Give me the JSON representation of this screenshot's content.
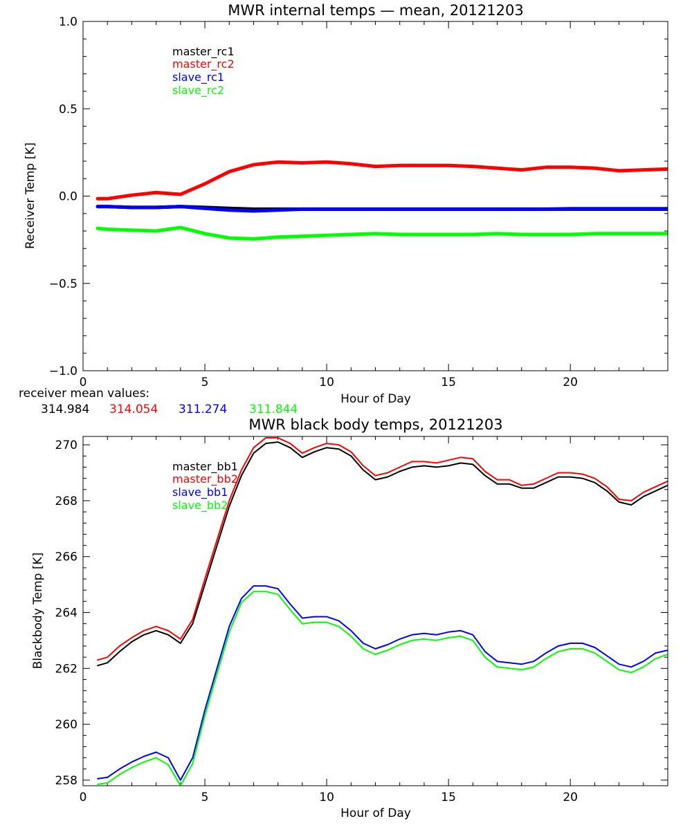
{
  "chart_data": [
    {
      "type": "line",
      "title": "MWR internal temps — mean, 20121203",
      "xlabel": "Hour of Day",
      "ylabel": "Receiver Temp [K]",
      "xlim": [
        0,
        24
      ],
      "ylim": [
        -1.0,
        1.0
      ],
      "xticks": [
        0,
        5,
        10,
        15,
        20
      ],
      "xtick_labels": [
        "0",
        "5",
        "10",
        "15",
        "20"
      ],
      "yticks": [
        -1.0,
        -0.5,
        0.0,
        0.5,
        1.0
      ],
      "ytick_labels": [
        "−1.0",
        "−0.5",
        "0.0",
        "0.5",
        "1.0"
      ],
      "grid": false,
      "legend_position": "top-left",
      "series": [
        {
          "name": "master_rc1",
          "color": "#000000",
          "x": [
            0.6,
            1,
            2,
            3,
            4,
            5,
            6,
            7,
            8,
            9,
            10,
            11,
            12,
            13,
            14,
            15,
            16,
            17,
            18,
            19,
            20,
            21,
            22,
            23,
            24
          ],
          "y": [
            -0.06,
            -0.06,
            -0.065,
            -0.065,
            -0.06,
            -0.065,
            -0.07,
            -0.075,
            -0.075,
            -0.075,
            -0.075,
            -0.075,
            -0.075,
            -0.075,
            -0.075,
            -0.075,
            -0.075,
            -0.075,
            -0.075,
            -0.075,
            -0.075,
            -0.075,
            -0.075,
            -0.075,
            -0.075
          ]
        },
        {
          "name": "master_rc2",
          "color": "#ff0000",
          "x": [
            0.6,
            1,
            2,
            3,
            4,
            5,
            6,
            7,
            8,
            9,
            10,
            11,
            12,
            13,
            14,
            15,
            16,
            17,
            18,
            19,
            20,
            21,
            22,
            23,
            24
          ],
          "y": [
            -0.015,
            -0.015,
            0.005,
            0.02,
            0.01,
            0.07,
            0.14,
            0.18,
            0.195,
            0.19,
            0.195,
            0.185,
            0.17,
            0.175,
            0.175,
            0.175,
            0.17,
            0.16,
            0.15,
            0.165,
            0.165,
            0.16,
            0.145,
            0.15,
            0.155
          ]
        },
        {
          "name": "slave_rc1",
          "color": "#0000ff",
          "x": [
            0.6,
            1,
            2,
            3,
            4,
            5,
            6,
            7,
            8,
            9,
            10,
            11,
            12,
            13,
            14,
            15,
            16,
            17,
            18,
            19,
            20,
            21,
            22,
            23,
            24
          ],
          "y": [
            -0.06,
            -0.06,
            -0.065,
            -0.065,
            -0.06,
            -0.07,
            -0.08,
            -0.085,
            -0.08,
            -0.075,
            -0.075,
            -0.075,
            -0.075,
            -0.075,
            -0.075,
            -0.075,
            -0.075,
            -0.075,
            -0.075,
            -0.075,
            -0.072,
            -0.072,
            -0.072,
            -0.072,
            -0.072
          ]
        },
        {
          "name": "slave_rc2",
          "color": "#00ff00",
          "x": [
            0.6,
            1,
            2,
            3,
            4,
            5,
            6,
            7,
            8,
            9,
            10,
            11,
            12,
            13,
            14,
            15,
            16,
            17,
            18,
            19,
            20,
            21,
            22,
            23,
            24
          ],
          "y": [
            -0.185,
            -0.19,
            -0.195,
            -0.2,
            -0.18,
            -0.215,
            -0.24,
            -0.245,
            -0.235,
            -0.23,
            -0.225,
            -0.22,
            -0.215,
            -0.22,
            -0.22,
            -0.22,
            -0.22,
            -0.215,
            -0.22,
            -0.22,
            -0.22,
            -0.215,
            -0.215,
            -0.215,
            -0.215
          ]
        }
      ]
    },
    {
      "type": "line",
      "title": "MWR black body temps, 20121203",
      "xlabel": "Hour of Day",
      "ylabel": "Blackbody Temp [K]",
      "xlim": [
        0,
        24
      ],
      "ylim": [
        257.8,
        270.3
      ],
      "xticks": [
        0,
        5,
        10,
        15,
        20
      ],
      "xtick_labels": [
        "0",
        "5",
        "10",
        "15",
        "20"
      ],
      "yticks": [
        258,
        260,
        262,
        264,
        266,
        268,
        270
      ],
      "ytick_labels": [
        "258",
        "260",
        "262",
        "264",
        "266",
        "268",
        "270"
      ],
      "grid": false,
      "legend_position": "top-left",
      "series": [
        {
          "name": "master_bb1",
          "color": "#000000",
          "x": [
            0.6,
            1.0,
            1.5,
            2.0,
            2.5,
            3.0,
            3.5,
            4.0,
            4.5,
            5.0,
            5.5,
            6.0,
            6.5,
            7.0,
            7.5,
            8.0,
            8.5,
            9.0,
            9.5,
            10.0,
            10.5,
            11.0,
            11.5,
            12.0,
            12.5,
            13.0,
            13.5,
            14.0,
            14.5,
            15.0,
            15.5,
            16.0,
            16.5,
            17.0,
            17.5,
            18.0,
            18.5,
            19.0,
            19.5,
            20.0,
            20.5,
            21.0,
            21.5,
            22.0,
            22.5,
            23.0,
            23.5,
            24.0
          ],
          "y": [
            262.1,
            262.2,
            262.6,
            262.95,
            263.2,
            263.35,
            263.2,
            262.9,
            263.6,
            265.0,
            266.4,
            267.8,
            268.9,
            269.7,
            270.05,
            270.1,
            269.9,
            269.55,
            269.75,
            269.9,
            269.85,
            269.6,
            269.1,
            268.75,
            268.85,
            269.05,
            269.2,
            269.25,
            269.2,
            269.25,
            269.35,
            269.3,
            268.9,
            268.6,
            268.6,
            268.45,
            268.45,
            268.65,
            268.85,
            268.85,
            268.8,
            268.65,
            268.35,
            267.95,
            267.85,
            268.15,
            268.35,
            268.55
          ]
        },
        {
          "name": "master_bb2",
          "color": "#ff0000",
          "x": [
            0.6,
            1.0,
            1.5,
            2.0,
            2.5,
            3.0,
            3.5,
            4.0,
            4.5,
            5.0,
            5.5,
            6.0,
            6.5,
            7.0,
            7.5,
            8.0,
            8.5,
            9.0,
            9.5,
            10.0,
            10.5,
            11.0,
            11.5,
            12.0,
            12.5,
            13.0,
            13.5,
            14.0,
            14.5,
            15.0,
            15.5,
            16.0,
            16.5,
            17.0,
            17.5,
            18.0,
            18.5,
            19.0,
            19.5,
            20.0,
            20.5,
            21.0,
            21.5,
            22.0,
            22.5,
            23.0,
            23.5,
            24.0
          ],
          "y": [
            262.3,
            262.4,
            262.8,
            263.1,
            263.35,
            263.5,
            263.35,
            263.05,
            263.75,
            265.2,
            266.6,
            268.0,
            269.1,
            269.9,
            270.25,
            270.25,
            270.05,
            269.7,
            269.9,
            270.05,
            270.0,
            269.75,
            269.25,
            268.9,
            269.0,
            269.2,
            269.4,
            269.4,
            269.35,
            269.45,
            269.55,
            269.5,
            269.05,
            268.75,
            268.75,
            268.55,
            268.6,
            268.8,
            269.0,
            269.0,
            268.95,
            268.8,
            268.5,
            268.05,
            268.0,
            268.3,
            268.5,
            268.7
          ]
        },
        {
          "name": "slave_bb1",
          "color": "#0000ff",
          "x": [
            0.6,
            1.0,
            1.5,
            2.0,
            2.5,
            3.0,
            3.5,
            4.0,
            4.5,
            5.0,
            5.5,
            6.0,
            6.5,
            7.0,
            7.5,
            8.0,
            8.5,
            9.0,
            9.5,
            10.0,
            10.5,
            11.0,
            11.5,
            12.0,
            12.5,
            13.0,
            13.5,
            14.0,
            14.5,
            15.0,
            15.5,
            16.0,
            16.5,
            17.0,
            17.5,
            18.0,
            18.5,
            19.0,
            19.5,
            20.0,
            20.5,
            21.0,
            21.5,
            22.0,
            22.5,
            23.0,
            23.5,
            24.0
          ],
          "y": [
            258.05,
            258.1,
            258.4,
            258.65,
            258.85,
            259.0,
            258.8,
            258.0,
            258.8,
            260.5,
            262.0,
            263.5,
            264.5,
            264.95,
            264.95,
            264.85,
            264.3,
            263.8,
            263.85,
            263.85,
            263.7,
            263.35,
            262.9,
            262.7,
            262.85,
            263.05,
            263.2,
            263.25,
            263.2,
            263.3,
            263.35,
            263.2,
            262.6,
            262.25,
            262.2,
            262.15,
            262.25,
            262.55,
            262.8,
            262.9,
            262.9,
            262.75,
            262.45,
            262.15,
            262.05,
            262.25,
            262.55,
            262.65
          ]
        },
        {
          "name": "slave_bb2",
          "color": "#00ff00",
          "x": [
            0.6,
            1.0,
            1.5,
            2.0,
            2.5,
            3.0,
            3.5,
            4.0,
            4.5,
            5.0,
            5.5,
            6.0,
            6.5,
            7.0,
            7.5,
            8.0,
            8.5,
            9.0,
            9.5,
            10.0,
            10.5,
            11.0,
            11.5,
            12.0,
            12.5,
            13.0,
            13.5,
            14.0,
            14.5,
            15.0,
            15.5,
            16.0,
            16.5,
            17.0,
            17.5,
            18.0,
            18.5,
            19.0,
            19.5,
            20.0,
            20.5,
            21.0,
            21.5,
            22.0,
            22.5,
            23.0,
            23.5,
            24.0
          ],
          "y": [
            257.85,
            257.9,
            258.2,
            258.45,
            258.65,
            258.8,
            258.55,
            257.8,
            258.6,
            260.3,
            261.8,
            263.3,
            264.35,
            264.75,
            264.75,
            264.65,
            264.1,
            263.6,
            263.65,
            263.65,
            263.5,
            263.15,
            262.7,
            262.5,
            262.65,
            262.85,
            263.0,
            263.05,
            263.0,
            263.1,
            263.15,
            263.0,
            262.4,
            262.05,
            262.0,
            261.95,
            262.05,
            262.35,
            262.6,
            262.7,
            262.7,
            262.55,
            262.25,
            261.95,
            261.85,
            262.05,
            262.35,
            262.5
          ]
        }
      ]
    }
  ],
  "receiver_means": {
    "title": "receiver mean values:",
    "values": [
      {
        "text": "314.984",
        "color": "#000000"
      },
      {
        "text": "314.054",
        "color": "#ff0000"
      },
      {
        "text": "311.274",
        "color": "#0000ff"
      },
      {
        "text": "311.844",
        "color": "#00ff00"
      }
    ]
  }
}
